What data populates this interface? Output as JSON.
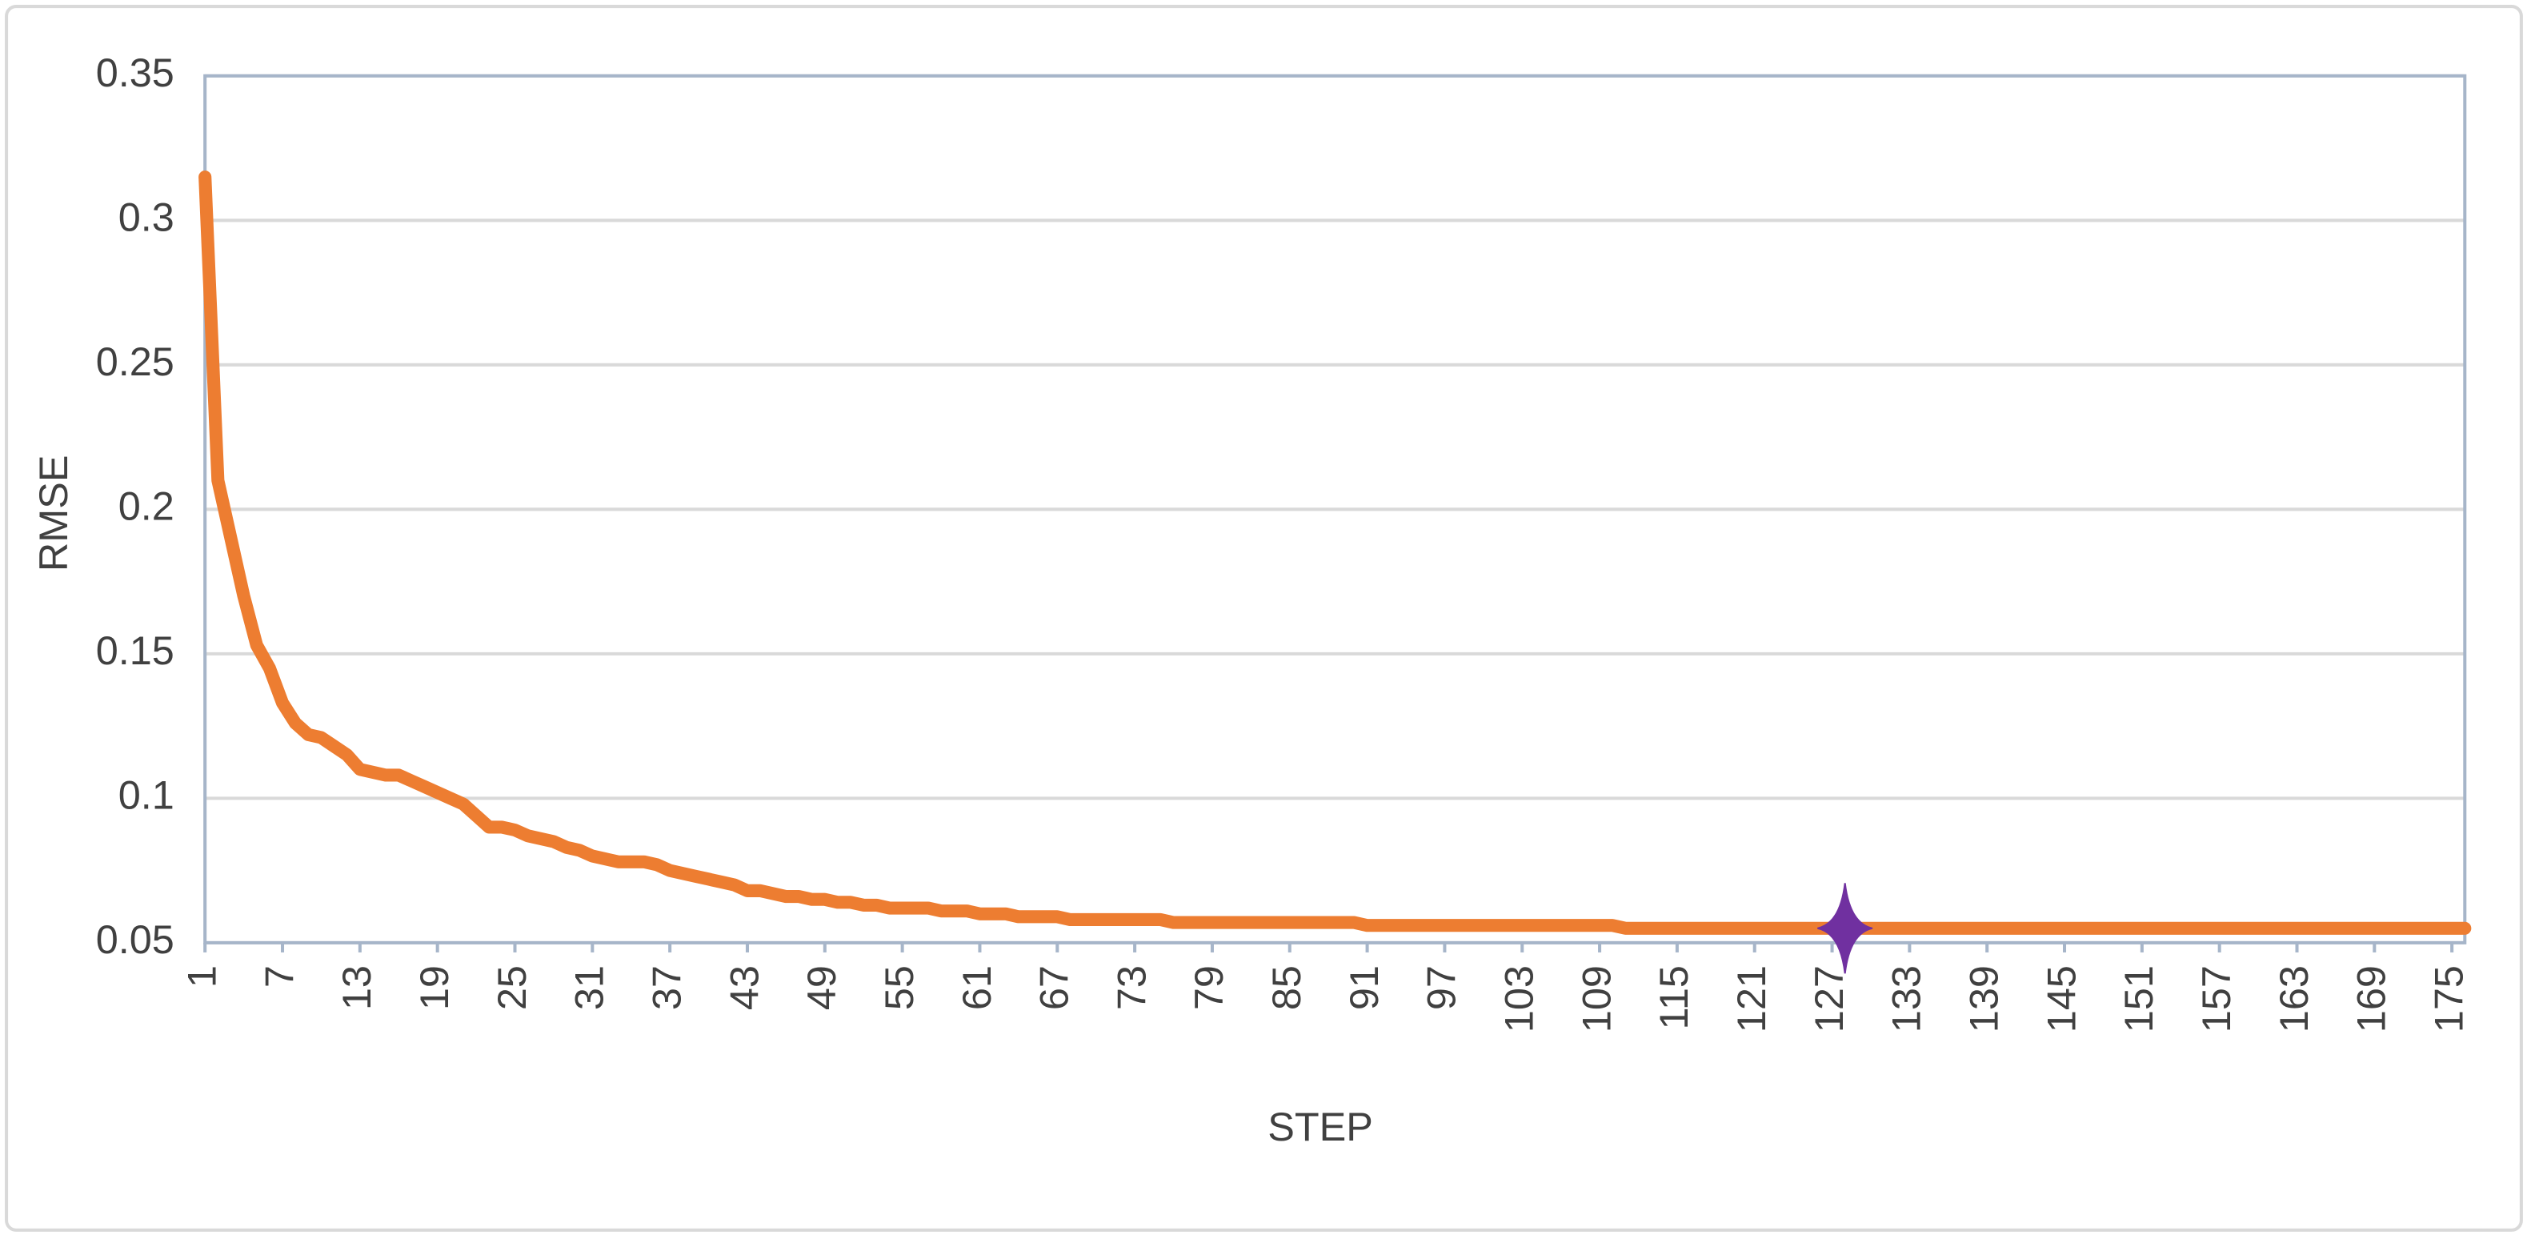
{
  "chart_data": {
    "type": "line",
    "x_label": "STEP",
    "y_label": "RMSE",
    "x": [
      1,
      2,
      3,
      4,
      5,
      6,
      7,
      8,
      9,
      10,
      11,
      12,
      13,
      14,
      15,
      16,
      17,
      18,
      19,
      20,
      21,
      22,
      23,
      24,
      25,
      26,
      27,
      28,
      29,
      30,
      31,
      32,
      33,
      34,
      35,
      36,
      37,
      38,
      39,
      40,
      41,
      42,
      43,
      44,
      45,
      46,
      47,
      48,
      49,
      50,
      51,
      52,
      53,
      54,
      55,
      56,
      57,
      58,
      59,
      60,
      61,
      62,
      63,
      64,
      65,
      66,
      67,
      68,
      69,
      70,
      71,
      72,
      73,
      74,
      75,
      76,
      77,
      78,
      79,
      80,
      81,
      82,
      83,
      84,
      85,
      86,
      87,
      88,
      89,
      90,
      91,
      92,
      93,
      94,
      95,
      96,
      97,
      98,
      99,
      100,
      101,
      102,
      103,
      104,
      105,
      106,
      107,
      108,
      109,
      110,
      111,
      112,
      113,
      114,
      115,
      116,
      117,
      118,
      119,
      120,
      121,
      122,
      123,
      124,
      125,
      126,
      127,
      128,
      129,
      130,
      131,
      132,
      133,
      134,
      135,
      136,
      137,
      138,
      139,
      140,
      141,
      142,
      143,
      144,
      145,
      146,
      147,
      148,
      149,
      150,
      151,
      152,
      153,
      154,
      155,
      156,
      157,
      158,
      159,
      160,
      161,
      162,
      163,
      164,
      165,
      166,
      167,
      168,
      169,
      170,
      171,
      172,
      173,
      174,
      175,
      176
    ],
    "values": [
      0.315,
      0.21,
      0.19,
      0.17,
      0.153,
      0.145,
      0.133,
      0.126,
      0.122,
      0.121,
      0.118,
      0.115,
      0.11,
      0.109,
      0.108,
      0.108,
      0.106,
      0.104,
      0.102,
      0.1,
      0.098,
      0.094,
      0.09,
      0.09,
      0.089,
      0.087,
      0.086,
      0.085,
      0.083,
      0.082,
      0.08,
      0.079,
      0.078,
      0.078,
      0.078,
      0.077,
      0.075,
      0.074,
      0.073,
      0.072,
      0.071,
      0.07,
      0.068,
      0.068,
      0.067,
      0.066,
      0.066,
      0.065,
      0.065,
      0.064,
      0.064,
      0.063,
      0.063,
      0.062,
      0.062,
      0.062,
      0.062,
      0.061,
      0.061,
      0.061,
      0.06,
      0.06,
      0.06,
      0.059,
      0.059,
      0.059,
      0.059,
      0.058,
      0.058,
      0.058,
      0.058,
      0.058,
      0.058,
      0.058,
      0.058,
      0.057,
      0.057,
      0.057,
      0.057,
      0.057,
      0.057,
      0.057,
      0.057,
      0.057,
      0.057,
      0.057,
      0.057,
      0.057,
      0.057,
      0.057,
      0.056,
      0.056,
      0.056,
      0.056,
      0.056,
      0.056,
      0.056,
      0.056,
      0.056,
      0.056,
      0.056,
      0.056,
      0.056,
      0.056,
      0.056,
      0.056,
      0.056,
      0.056,
      0.056,
      0.056,
      0.055,
      0.055,
      0.055,
      0.055,
      0.055,
      0.055,
      0.055,
      0.055,
      0.055,
      0.055,
      0.055,
      0.055,
      0.055,
      0.055,
      0.055,
      0.055,
      0.055,
      0.055,
      0.055,
      0.055,
      0.055,
      0.055,
      0.055,
      0.055,
      0.055,
      0.055,
      0.055,
      0.055,
      0.055,
      0.055,
      0.055,
      0.055,
      0.055,
      0.055,
      0.055,
      0.055,
      0.055,
      0.055,
      0.055,
      0.055,
      0.055,
      0.055,
      0.055,
      0.055,
      0.055,
      0.055,
      0.055,
      0.055,
      0.055,
      0.055,
      0.055,
      0.055,
      0.055,
      0.055,
      0.055,
      0.055,
      0.055,
      0.055,
      0.055,
      0.055,
      0.055,
      0.055,
      0.055,
      0.055,
      0.055,
      0.055
    ],
    "color": "#ed7d31",
    "highlight": {
      "x": 128,
      "y": 0.055,
      "color": "#7030a0"
    },
    "xlim": [
      1,
      176
    ],
    "ylim": [
      0.05,
      0.35
    ],
    "xticks": [
      1,
      7,
      13,
      19,
      25,
      31,
      37,
      43,
      49,
      55,
      61,
      67,
      73,
      79,
      85,
      91,
      97,
      103,
      109,
      115,
      121,
      127,
      133,
      139,
      145,
      151,
      157,
      163,
      169,
      175
    ],
    "yticks": [
      0.05,
      0.1,
      0.15,
      0.2,
      0.25,
      0.3,
      0.35
    ],
    "grid": true
  }
}
